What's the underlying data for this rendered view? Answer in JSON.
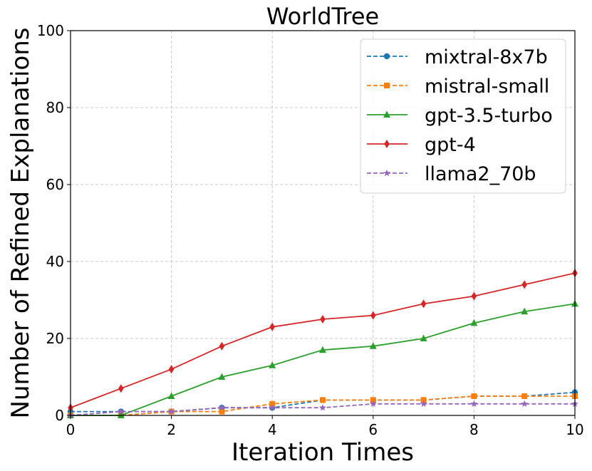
{
  "chart_data": {
    "type": "line",
    "title": "WorldTree",
    "xlabel": "Iteration Times",
    "ylabel": "Number of Refined Explanations",
    "xlim": [
      0,
      10
    ],
    "ylim": [
      0,
      100
    ],
    "xticks": [
      "0",
      "2",
      "4",
      "6",
      "8",
      "10"
    ],
    "yticks": [
      "0",
      "20",
      "40",
      "60",
      "80",
      "100"
    ],
    "grid": true,
    "legend_position": "top-right",
    "x": [
      0,
      1,
      2,
      3,
      4,
      5,
      6,
      7,
      8,
      9,
      10
    ],
    "series": [
      {
        "name": "mixtral-8x7b",
        "color": "#1f77b4",
        "dash": "dashed",
        "marker": "circle",
        "values": [
          1,
          1,
          1,
          2,
          2,
          4,
          4,
          4,
          5,
          5,
          6
        ]
      },
      {
        "name": "mistral-small",
        "color": "#ff7f0e",
        "dash": "dashed",
        "marker": "square",
        "values": [
          0,
          0,
          1,
          1,
          3,
          4,
          4,
          4,
          5,
          5,
          5
        ]
      },
      {
        "name": "gpt-3.5-turbo",
        "color": "#2ca02c",
        "dash": "solid",
        "marker": "triangle",
        "values": [
          0,
          0,
          5,
          10,
          13,
          17,
          18,
          20,
          24,
          27,
          29
        ]
      },
      {
        "name": "gpt-4",
        "color": "#d62728",
        "dash": "solid",
        "marker": "diamond",
        "values": [
          2,
          7,
          12,
          18,
          23,
          25,
          26,
          29,
          31,
          34,
          37
        ]
      },
      {
        "name": "llama2_70b",
        "color": "#9467bd",
        "dash": "dashed",
        "marker": "star",
        "values": [
          0,
          1,
          1,
          2,
          2,
          2,
          3,
          3,
          3,
          3,
          3
        ]
      }
    ]
  }
}
